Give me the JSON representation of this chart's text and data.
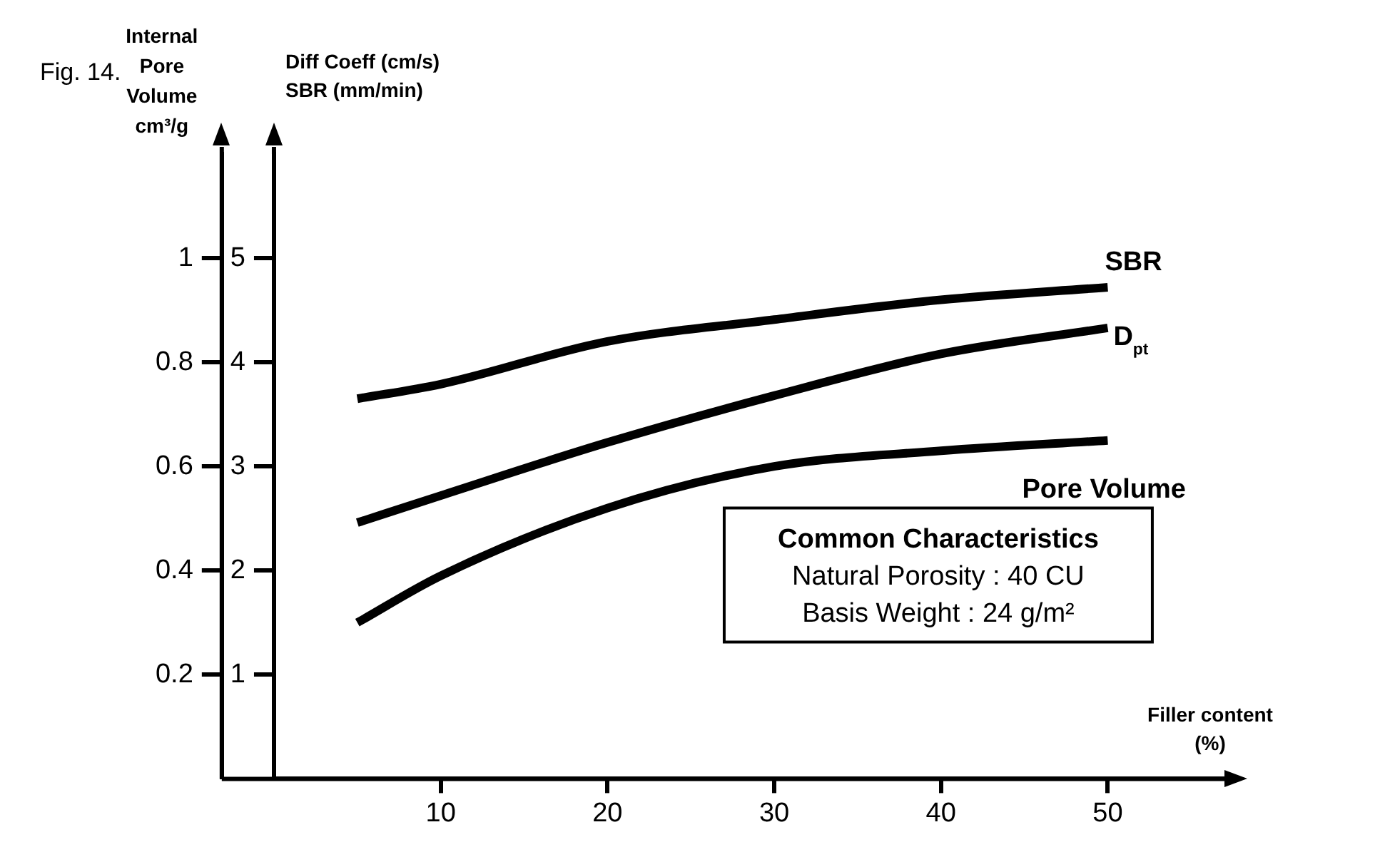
{
  "chart_data": {
    "type": "line",
    "title": "Fig. 14.",
    "xlabel": "Filler content\n(%)",
    "ylabel": "Internal\nPore\nVolume\ncm³/g",
    "y2label": "Diff Coeff (cm/s)\nSBR (mm/min)",
    "x": [
      5,
      10,
      20,
      30,
      40,
      50
    ],
    "series": [
      {
        "name": "SBR",
        "color": "#000000",
        "axis": "y2",
        "values": [
          3.65,
          3.79,
          4.2,
          4.41,
          4.6,
          4.72
        ]
      },
      {
        "name": "D$_{pt}$",
        "color": "#000000",
        "axis": "y2",
        "values": [
          2.46,
          2.72,
          3.23,
          3.68,
          4.08,
          4.33
        ]
      },
      {
        "name": "Pore Volume",
        "color": "#000000",
        "values": [
          0.3,
          0.39,
          0.52,
          0.6,
          0.63,
          0.65
        ]
      }
    ],
    "xlim": [
      0,
      57
    ],
    "xticks": [
      10,
      20,
      30,
      40,
      50
    ],
    "ylim": [
      0,
      1.2
    ],
    "yticks": [
      0.2,
      0.4,
      0.6,
      0.8,
      1
    ],
    "y2lim": [
      0,
      6
    ],
    "y2ticks": [
      1,
      2,
      3,
      4,
      5
    ],
    "grid": false,
    "legend": false,
    "marker": "none",
    "line_style": "solid",
    "annotations": [
      "Common Characteristics",
      "Natural Porosity : 40 CU",
      "Basis Weight : 24 g/m²"
    ]
  }
}
